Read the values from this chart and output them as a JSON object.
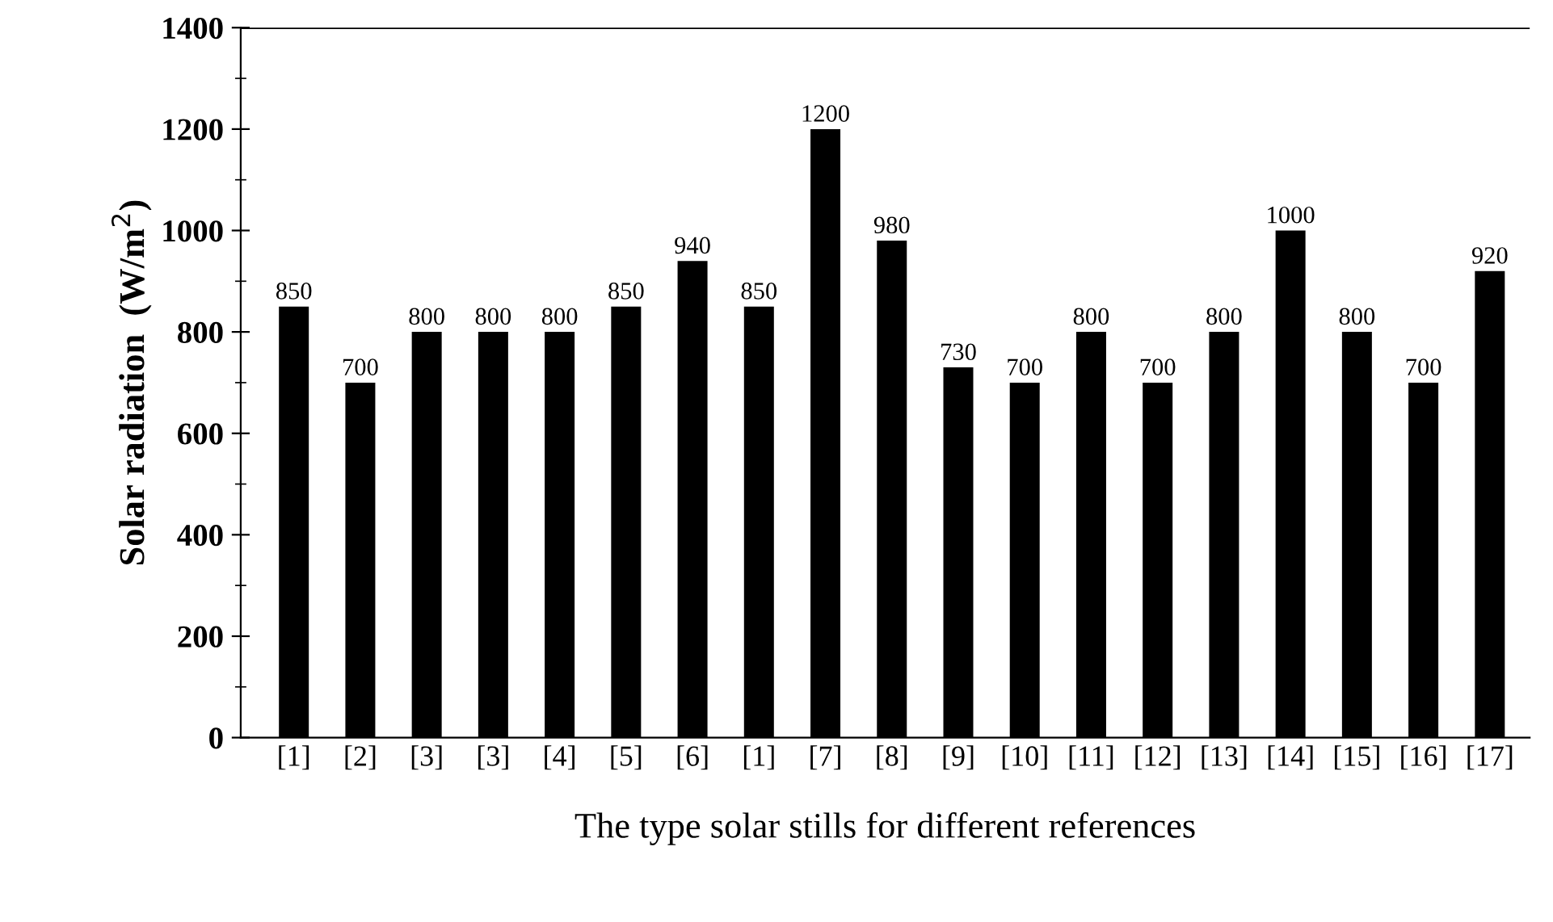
{
  "chart_data": {
    "type": "bar",
    "xlabel": "The type solar stills for different references",
    "ylabel": "Solar radiation  (W/m$^{2}$)",
    "categories": [
      "[1]",
      "[2]",
      "[3]",
      "[3]",
      "[4]",
      "[5]",
      "[6]",
      "[1]",
      "[7]",
      "[8]",
      "[9]",
      "[10]",
      "[11]",
      "[12]",
      "[13]",
      "[14]",
      "[15]",
      "[16]",
      "[17]"
    ],
    "values": [
      850,
      700,
      800,
      800,
      800,
      850,
      940,
      850,
      1200,
      980,
      730,
      700,
      800,
      700,
      800,
      1000,
      800,
      700,
      920
    ],
    "color": "#000000",
    "ylim": [
      0,
      1400
    ],
    "yticks": [
      0,
      200,
      400,
      600,
      800,
      1000,
      1200,
      1400
    ],
    "data_labels": true,
    "grid": false,
    "legend": false
  }
}
